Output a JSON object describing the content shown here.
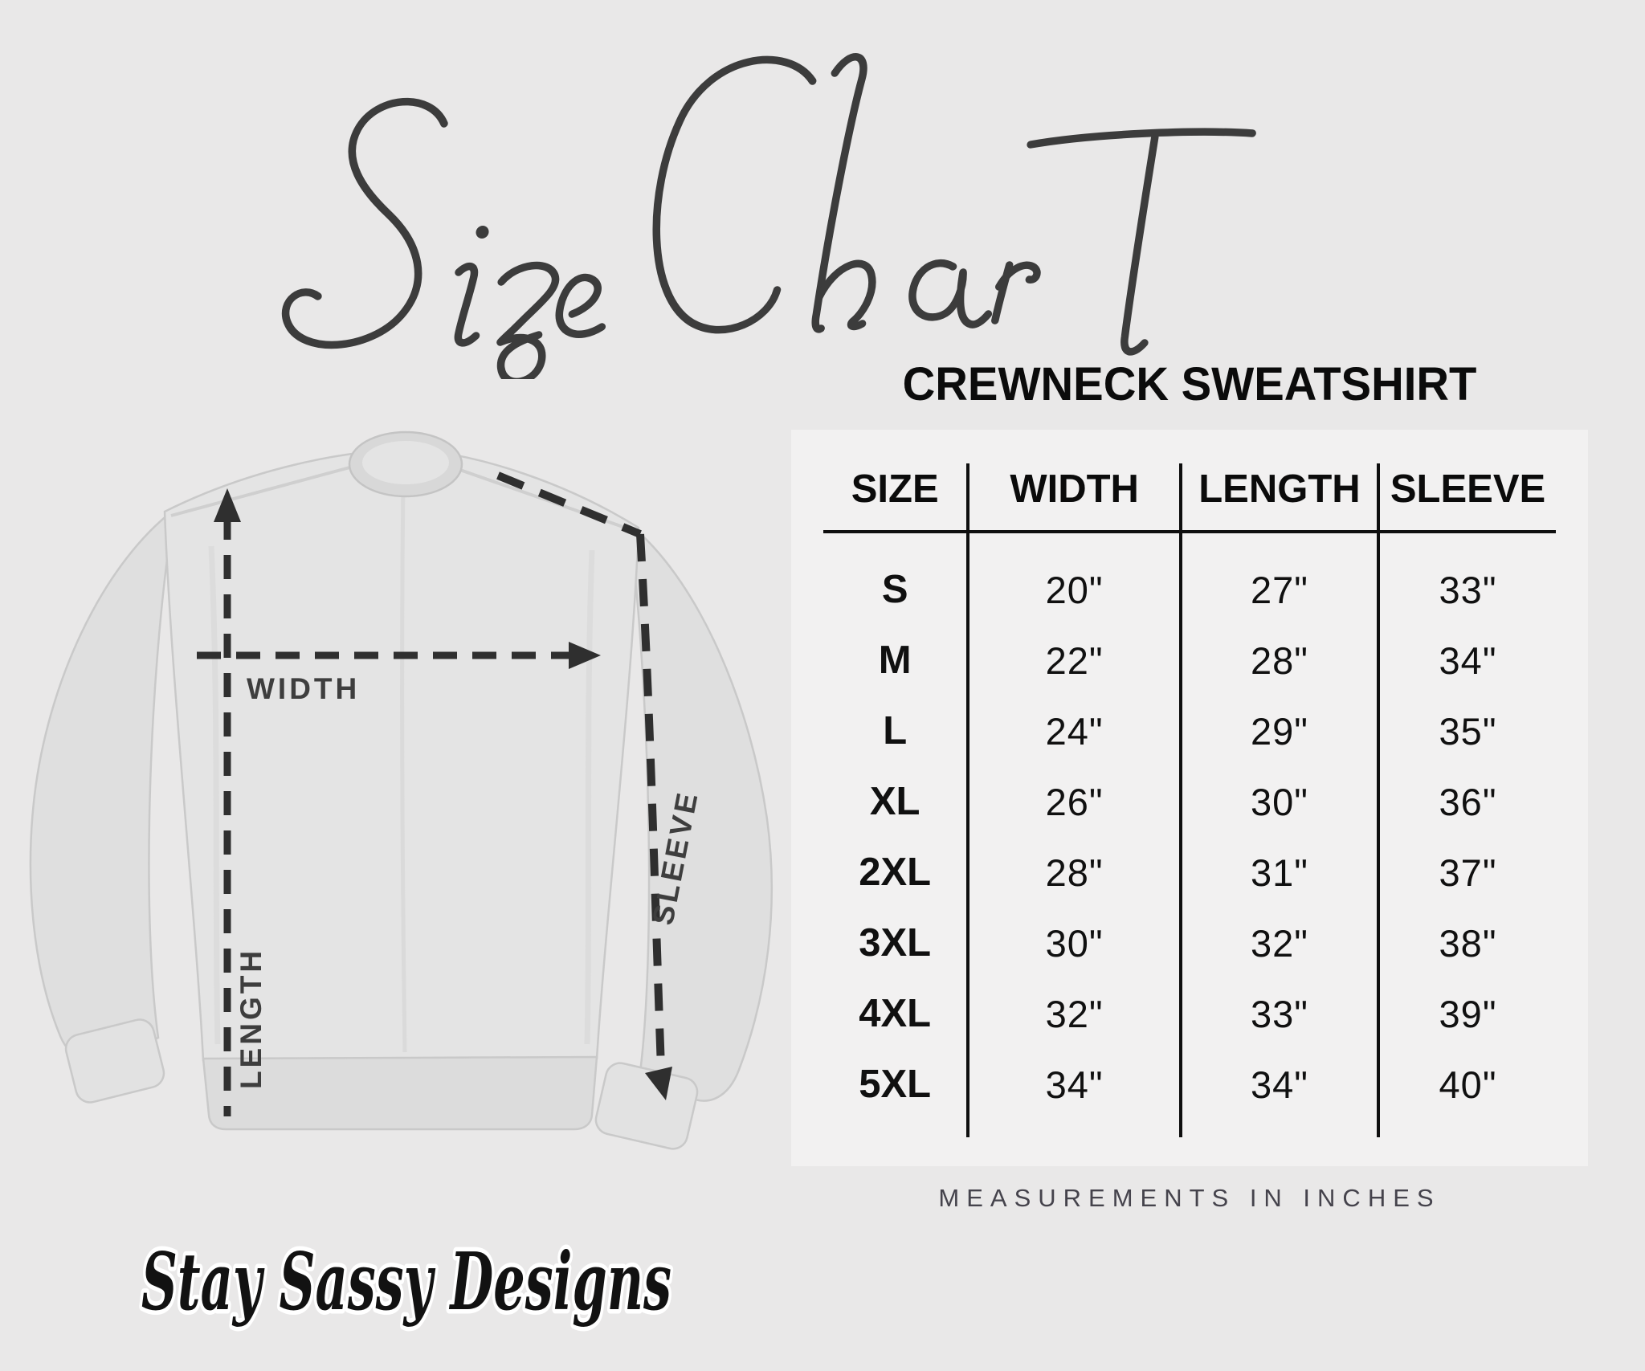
{
  "page": {
    "title_script": "Size Chart",
    "brand_logo": "Stay Sassy Designs"
  },
  "colors": {
    "background": "#e9e8e8",
    "panel": "#f2f1f1",
    "script_ink": "#3c3c3c",
    "table_ink": "#0f0f0f",
    "diagram_ink": "#2f2f2f",
    "footnote_ink": "#45434c"
  },
  "diagram": {
    "width_label": "WIDTH",
    "length_label": "LENGTH",
    "sleeve_label": "SLEEVE"
  },
  "size_table": {
    "heading": "CREWNECK SWEATSHIRT",
    "columns": [
      "SIZE",
      "WIDTH",
      "LENGTH",
      "SLEEVE"
    ],
    "rows": [
      {
        "size": "S",
        "width": "20\"",
        "length": "27\"",
        "sleeve": "33\""
      },
      {
        "size": "M",
        "width": "22\"",
        "length": "28\"",
        "sleeve": "34\""
      },
      {
        "size": "L",
        "width": "24\"",
        "length": "29\"",
        "sleeve": "35\""
      },
      {
        "size": "XL",
        "width": "26\"",
        "length": "30\"",
        "sleeve": "36\""
      },
      {
        "size": "2XL",
        "width": "28\"",
        "length": "31\"",
        "sleeve": "37\""
      },
      {
        "size": "3XL",
        "width": "30\"",
        "length": "32\"",
        "sleeve": "38\""
      },
      {
        "size": "4XL",
        "width": "32\"",
        "length": "33\"",
        "sleeve": "39\""
      },
      {
        "size": "5XL",
        "width": "34\"",
        "length": "34\"",
        "sleeve": "40\""
      }
    ],
    "footnote": "MEASUREMENTS IN INCHES"
  },
  "chart_data": {
    "type": "table",
    "title": "CREWNECK SWEATSHIRT",
    "columns": [
      "SIZE",
      "WIDTH",
      "LENGTH",
      "SLEEVE"
    ],
    "rows": [
      [
        "S",
        "20\"",
        "27\"",
        "33\""
      ],
      [
        "M",
        "22\"",
        "28\"",
        "34\""
      ],
      [
        "L",
        "24\"",
        "29\"",
        "35\""
      ],
      [
        "XL",
        "26\"",
        "30\"",
        "36\""
      ],
      [
        "2XL",
        "28\"",
        "31\"",
        "37\""
      ],
      [
        "3XL",
        "30\"",
        "32\"",
        "38\""
      ],
      [
        "4XL",
        "32\"",
        "33\"",
        "39\""
      ],
      [
        "5XL",
        "34\"",
        "34\"",
        "40\""
      ]
    ],
    "units": "inches",
    "notes": "Measurement diagram labels: WIDTH (chest across), LENGTH (shoulder to hem), SLEEVE (neck to cuff)"
  }
}
